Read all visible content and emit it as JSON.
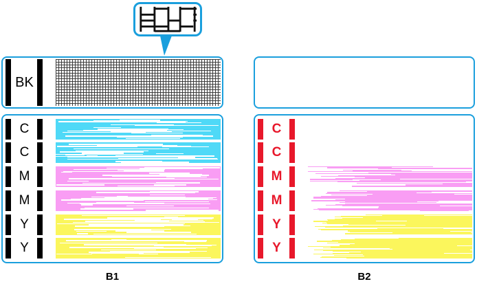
{
  "colors": {
    "blue": "#1a9fdd",
    "black": "#000000",
    "red": "#e8182b",
    "cyan": "#4fd9f7",
    "magenta": "#f99df4",
    "yellow": "#fbf65c",
    "gridline": "#3c3c3c",
    "white": "#ffffff"
  },
  "callout": {
    "icon": "magnified-nozzle-grid"
  },
  "panel_b1": {
    "caption": "B1",
    "bk_label": "BK",
    "bar_color": "#000000",
    "label_color": "#000000",
    "streak_color": "#ffffff",
    "rows": [
      {
        "label": "C",
        "ink": "cyan",
        "streaks": 26,
        "seed": 11
      },
      {
        "label": "C",
        "ink": "cyan",
        "streaks": 26,
        "seed": 23
      },
      {
        "label": "M",
        "ink": "magenta",
        "streaks": 26,
        "seed": 37
      },
      {
        "label": "M",
        "ink": "magenta",
        "streaks": 26,
        "seed": 49
      },
      {
        "label": "Y",
        "ink": "yellow",
        "streaks": 26,
        "seed": 61
      },
      {
        "label": "Y",
        "ink": "yellow",
        "streaks": 26,
        "seed": 73
      }
    ]
  },
  "panel_b2": {
    "caption": "B2",
    "bar_color": "#e8182b",
    "label_color": "#e8182b",
    "rows": [
      {
        "label": "C",
        "ink": "cyan",
        "density": 0,
        "seed": 101
      },
      {
        "label": "C",
        "ink": "cyan",
        "density": 0,
        "seed": 113
      },
      {
        "label": "M",
        "ink": "magenta",
        "density": 0.5,
        "seed": 127
      },
      {
        "label": "M",
        "ink": "magenta",
        "density": 0.58,
        "seed": 139
      },
      {
        "label": "Y",
        "ink": "yellow",
        "density": 0.8,
        "seed": 151
      },
      {
        "label": "Y",
        "ink": "yellow",
        "density": 0.85,
        "seed": 163
      }
    ]
  }
}
